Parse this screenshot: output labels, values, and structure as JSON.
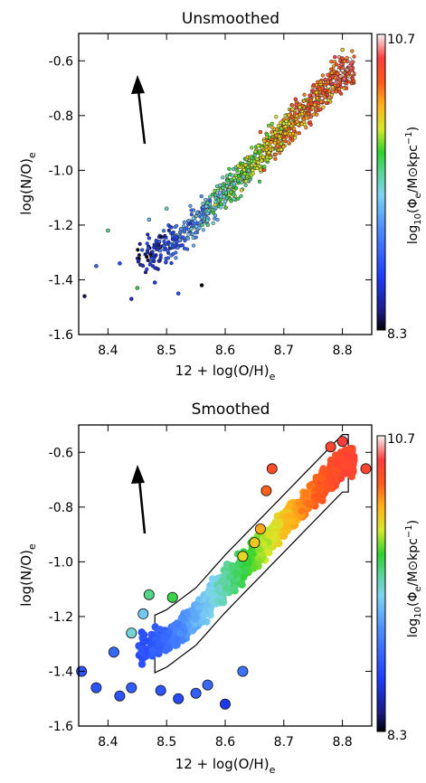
{
  "chart_data": [
    {
      "type": "scatter",
      "title": "Unsmoothed",
      "xlabel": "12 + log(O/H)",
      "xlabel_sub": "e",
      "ylabel": "log(N/O)",
      "ylabel_sub": "e",
      "xlim": [
        8.35,
        8.85
      ],
      "ylim": [
        -1.6,
        -0.5
      ],
      "xticks": [
        8.4,
        8.5,
        8.6,
        8.7,
        8.8
      ],
      "xtick_labels": [
        "8.4",
        "8.5",
        "8.6",
        "8.7",
        "8.8"
      ],
      "yticks": [
        -1.6,
        -1.4,
        -1.2,
        -1.0,
        -0.8,
        -0.6
      ],
      "ytick_labels": [
        "-1.6",
        "-1.4",
        "-1.2",
        "-1.0",
        "-0.8",
        "-0.6"
      ],
      "grid": false,
      "arrow": {
        "from": [
          8.47,
          -1.05
        ],
        "to": [
          8.455,
          -0.8
        ],
        "direction": "up"
      },
      "colorbar": {
        "label": "log10(Φe/M⊙kpc⁻¹)",
        "min": 8.3,
        "max": 10.7,
        "min_label": "8.3",
        "max_label": "10.7"
      },
      "trend": {
        "x": [
          8.36,
          8.45,
          8.5,
          8.55,
          8.6,
          8.65,
          8.7,
          8.75,
          8.8
        ],
        "y": [
          -1.4,
          -1.33,
          -1.28,
          -1.2,
          -1.08,
          -0.97,
          -0.86,
          -0.75,
          -0.64
        ],
        "color": [
          8.3,
          8.45,
          8.8,
          9.2,
          9.6,
          9.9,
          10.1,
          10.3,
          10.45
        ]
      },
      "points": [
        {
          "x": 8.36,
          "y": -1.46,
          "c": 8.4
        },
        {
          "x": 8.38,
          "y": -1.35,
          "c": 8.9
        },
        {
          "x": 8.4,
          "y": -1.22,
          "c": 9.6
        },
        {
          "x": 8.42,
          "y": -1.34,
          "c": 8.8
        },
        {
          "x": 8.44,
          "y": -1.47,
          "c": 8.6
        },
        {
          "x": 8.45,
          "y": -1.43,
          "c": 9.7
        },
        {
          "x": 8.47,
          "y": -1.18,
          "c": 9.3
        },
        {
          "x": 8.48,
          "y": -1.41,
          "c": 8.7
        },
        {
          "x": 8.5,
          "y": -1.14,
          "c": 9.5
        },
        {
          "x": 8.52,
          "y": -1.45,
          "c": 8.8
        },
        {
          "x": 8.56,
          "y": -1.42,
          "c": 8.3
        },
        {
          "x": 8.61,
          "y": -1.08,
          "c": 9.8
        },
        {
          "x": 8.66,
          "y": -0.86,
          "c": 10.3
        },
        {
          "x": 8.72,
          "y": -0.74,
          "c": 10.4
        },
        {
          "x": 8.8,
          "y": -0.56,
          "c": 10.0
        }
      ]
    },
    {
      "type": "scatter",
      "title": "Smoothed",
      "xlabel": "12 + log(O/H)",
      "xlabel_sub": "e",
      "ylabel": "log(N/O)",
      "ylabel_sub": "e",
      "xlim": [
        8.35,
        8.85
      ],
      "ylim": [
        -1.6,
        -0.5
      ],
      "xticks": [
        8.4,
        8.5,
        8.6,
        8.7,
        8.8
      ],
      "xtick_labels": [
        "8.4",
        "8.5",
        "8.6",
        "8.7",
        "8.8"
      ],
      "yticks": [
        -1.6,
        -1.4,
        -1.2,
        -1.0,
        -0.8,
        -0.6
      ],
      "ytick_labels": [
        "-1.6",
        "-1.4",
        "-1.2",
        "-1.0",
        "-0.8",
        "-0.6"
      ],
      "grid": false,
      "arrow": {
        "from": [
          8.47,
          -1.05
        ],
        "to": [
          8.455,
          -0.8
        ],
        "direction": "up"
      },
      "colorbar": {
        "label": "log10(Φe/M⊙kpc⁻¹)",
        "min": 8.3,
        "max": 10.7,
        "min_label": "8.3",
        "max_label": "10.7"
      },
      "trend": {
        "x": [
          8.36,
          8.45,
          8.5,
          8.55,
          8.6,
          8.65,
          8.7,
          8.75,
          8.8
        ],
        "y": [
          -1.4,
          -1.33,
          -1.28,
          -1.2,
          -1.08,
          -0.97,
          -0.86,
          -0.75,
          -0.64
        ],
        "color": [
          8.75,
          8.8,
          8.95,
          9.25,
          9.55,
          9.8,
          10.05,
          10.3,
          10.45
        ]
      },
      "points": [
        {
          "x": 8.355,
          "y": -1.4,
          "c": 8.85
        },
        {
          "x": 8.38,
          "y": -1.46,
          "c": 8.85
        },
        {
          "x": 8.41,
          "y": -1.33,
          "c": 8.95
        },
        {
          "x": 8.42,
          "y": -1.49,
          "c": 8.85
        },
        {
          "x": 8.44,
          "y": -1.46,
          "c": 8.9
        },
        {
          "x": 8.44,
          "y": -1.26,
          "c": 9.45
        },
        {
          "x": 8.46,
          "y": -1.19,
          "c": 9.35
        },
        {
          "x": 8.47,
          "y": -1.12,
          "c": 9.6
        },
        {
          "x": 8.49,
          "y": -1.47,
          "c": 8.85
        },
        {
          "x": 8.51,
          "y": -1.13,
          "c": 9.7
        },
        {
          "x": 8.52,
          "y": -1.5,
          "c": 8.8
        },
        {
          "x": 8.55,
          "y": -1.48,
          "c": 8.9
        },
        {
          "x": 8.57,
          "y": -1.45,
          "c": 8.95
        },
        {
          "x": 8.6,
          "y": -1.52,
          "c": 8.7
        },
        {
          "x": 8.63,
          "y": -1.4,
          "c": 9.0
        },
        {
          "x": 8.63,
          "y": -0.98,
          "c": 10.0
        },
        {
          "x": 8.65,
          "y": -0.93,
          "c": 10.05
        },
        {
          "x": 8.66,
          "y": -0.88,
          "c": 10.15
        },
        {
          "x": 8.67,
          "y": -0.74,
          "c": 10.3
        },
        {
          "x": 8.68,
          "y": -0.66,
          "c": 10.4
        },
        {
          "x": 8.78,
          "y": -0.58,
          "c": 10.45
        },
        {
          "x": 8.8,
          "y": -0.56,
          "c": 10.5
        },
        {
          "x": 8.84,
          "y": -0.66,
          "c": 10.45
        }
      ]
    }
  ]
}
